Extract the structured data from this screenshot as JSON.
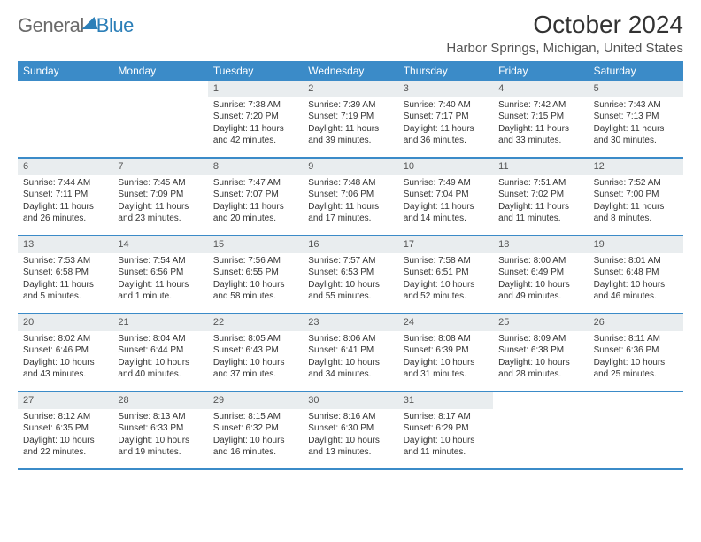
{
  "logo": {
    "text_general": "General",
    "text_blue": "Blue"
  },
  "header": {
    "month_title": "October 2024",
    "location": "Harbor Springs, Michigan, United States"
  },
  "colors": {
    "header_bg": "#3b8bc8",
    "daynum_bg": "#e9edef",
    "week_border": "#3b8bc8",
    "text": "#333333",
    "logo_gray": "#6b6b6b",
    "logo_blue": "#2c7fb8"
  },
  "day_names": [
    "Sunday",
    "Monday",
    "Tuesday",
    "Wednesday",
    "Thursday",
    "Friday",
    "Saturday"
  ],
  "weeks": [
    [
      null,
      null,
      {
        "n": "1",
        "sr": "Sunrise: 7:38 AM",
        "ss": "Sunset: 7:20 PM",
        "dl": "Daylight: 11 hours and 42 minutes."
      },
      {
        "n": "2",
        "sr": "Sunrise: 7:39 AM",
        "ss": "Sunset: 7:19 PM",
        "dl": "Daylight: 11 hours and 39 minutes."
      },
      {
        "n": "3",
        "sr": "Sunrise: 7:40 AM",
        "ss": "Sunset: 7:17 PM",
        "dl": "Daylight: 11 hours and 36 minutes."
      },
      {
        "n": "4",
        "sr": "Sunrise: 7:42 AM",
        "ss": "Sunset: 7:15 PM",
        "dl": "Daylight: 11 hours and 33 minutes."
      },
      {
        "n": "5",
        "sr": "Sunrise: 7:43 AM",
        "ss": "Sunset: 7:13 PM",
        "dl": "Daylight: 11 hours and 30 minutes."
      }
    ],
    [
      {
        "n": "6",
        "sr": "Sunrise: 7:44 AM",
        "ss": "Sunset: 7:11 PM",
        "dl": "Daylight: 11 hours and 26 minutes."
      },
      {
        "n": "7",
        "sr": "Sunrise: 7:45 AM",
        "ss": "Sunset: 7:09 PM",
        "dl": "Daylight: 11 hours and 23 minutes."
      },
      {
        "n": "8",
        "sr": "Sunrise: 7:47 AM",
        "ss": "Sunset: 7:07 PM",
        "dl": "Daylight: 11 hours and 20 minutes."
      },
      {
        "n": "9",
        "sr": "Sunrise: 7:48 AM",
        "ss": "Sunset: 7:06 PM",
        "dl": "Daylight: 11 hours and 17 minutes."
      },
      {
        "n": "10",
        "sr": "Sunrise: 7:49 AM",
        "ss": "Sunset: 7:04 PM",
        "dl": "Daylight: 11 hours and 14 minutes."
      },
      {
        "n": "11",
        "sr": "Sunrise: 7:51 AM",
        "ss": "Sunset: 7:02 PM",
        "dl": "Daylight: 11 hours and 11 minutes."
      },
      {
        "n": "12",
        "sr": "Sunrise: 7:52 AM",
        "ss": "Sunset: 7:00 PM",
        "dl": "Daylight: 11 hours and 8 minutes."
      }
    ],
    [
      {
        "n": "13",
        "sr": "Sunrise: 7:53 AM",
        "ss": "Sunset: 6:58 PM",
        "dl": "Daylight: 11 hours and 5 minutes."
      },
      {
        "n": "14",
        "sr": "Sunrise: 7:54 AM",
        "ss": "Sunset: 6:56 PM",
        "dl": "Daylight: 11 hours and 1 minute."
      },
      {
        "n": "15",
        "sr": "Sunrise: 7:56 AM",
        "ss": "Sunset: 6:55 PM",
        "dl": "Daylight: 10 hours and 58 minutes."
      },
      {
        "n": "16",
        "sr": "Sunrise: 7:57 AM",
        "ss": "Sunset: 6:53 PM",
        "dl": "Daylight: 10 hours and 55 minutes."
      },
      {
        "n": "17",
        "sr": "Sunrise: 7:58 AM",
        "ss": "Sunset: 6:51 PM",
        "dl": "Daylight: 10 hours and 52 minutes."
      },
      {
        "n": "18",
        "sr": "Sunrise: 8:00 AM",
        "ss": "Sunset: 6:49 PM",
        "dl": "Daylight: 10 hours and 49 minutes."
      },
      {
        "n": "19",
        "sr": "Sunrise: 8:01 AM",
        "ss": "Sunset: 6:48 PM",
        "dl": "Daylight: 10 hours and 46 minutes."
      }
    ],
    [
      {
        "n": "20",
        "sr": "Sunrise: 8:02 AM",
        "ss": "Sunset: 6:46 PM",
        "dl": "Daylight: 10 hours and 43 minutes."
      },
      {
        "n": "21",
        "sr": "Sunrise: 8:04 AM",
        "ss": "Sunset: 6:44 PM",
        "dl": "Daylight: 10 hours and 40 minutes."
      },
      {
        "n": "22",
        "sr": "Sunrise: 8:05 AM",
        "ss": "Sunset: 6:43 PM",
        "dl": "Daylight: 10 hours and 37 minutes."
      },
      {
        "n": "23",
        "sr": "Sunrise: 8:06 AM",
        "ss": "Sunset: 6:41 PM",
        "dl": "Daylight: 10 hours and 34 minutes."
      },
      {
        "n": "24",
        "sr": "Sunrise: 8:08 AM",
        "ss": "Sunset: 6:39 PM",
        "dl": "Daylight: 10 hours and 31 minutes."
      },
      {
        "n": "25",
        "sr": "Sunrise: 8:09 AM",
        "ss": "Sunset: 6:38 PM",
        "dl": "Daylight: 10 hours and 28 minutes."
      },
      {
        "n": "26",
        "sr": "Sunrise: 8:11 AM",
        "ss": "Sunset: 6:36 PM",
        "dl": "Daylight: 10 hours and 25 minutes."
      }
    ],
    [
      {
        "n": "27",
        "sr": "Sunrise: 8:12 AM",
        "ss": "Sunset: 6:35 PM",
        "dl": "Daylight: 10 hours and 22 minutes."
      },
      {
        "n": "28",
        "sr": "Sunrise: 8:13 AM",
        "ss": "Sunset: 6:33 PM",
        "dl": "Daylight: 10 hours and 19 minutes."
      },
      {
        "n": "29",
        "sr": "Sunrise: 8:15 AM",
        "ss": "Sunset: 6:32 PM",
        "dl": "Daylight: 10 hours and 16 minutes."
      },
      {
        "n": "30",
        "sr": "Sunrise: 8:16 AM",
        "ss": "Sunset: 6:30 PM",
        "dl": "Daylight: 10 hours and 13 minutes."
      },
      {
        "n": "31",
        "sr": "Sunrise: 8:17 AM",
        "ss": "Sunset: 6:29 PM",
        "dl": "Daylight: 10 hours and 11 minutes."
      },
      null,
      null
    ]
  ]
}
